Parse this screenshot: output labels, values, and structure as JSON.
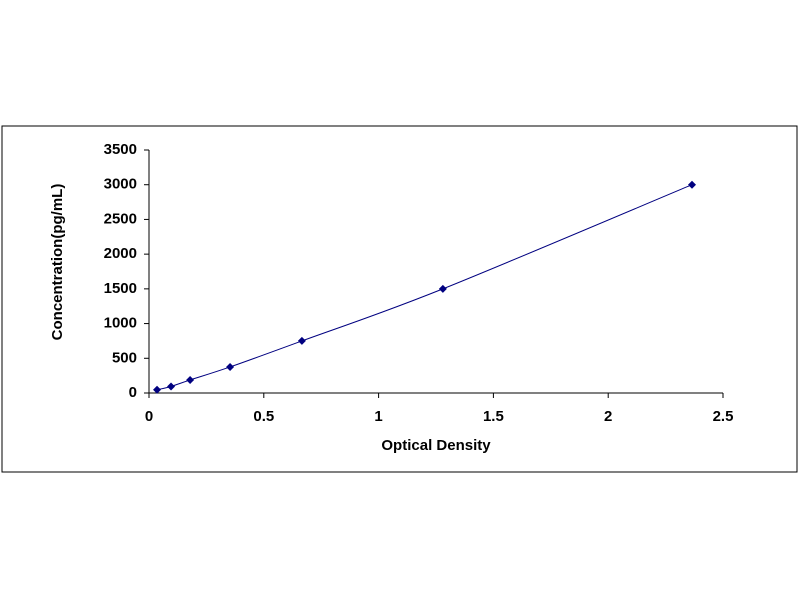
{
  "chart_data": {
    "type": "scatter",
    "x_label": "Optical Density",
    "y_label": "Concentration(pg/mL)",
    "series": [
      {
        "color": "#000080",
        "x": [
          0.035,
          0.096,
          0.179,
          0.353,
          0.666,
          1.28,
          2.365
        ],
        "values": [
          47,
          94,
          188,
          375,
          750,
          1500,
          3000
        ]
      }
    ],
    "xlim": [
      0,
      2.5
    ],
    "xticks": [
      0,
      0.5,
      1,
      1.5,
      2,
      2.5
    ],
    "ylim": [
      0,
      3500
    ],
    "yticks": [
      0,
      500,
      1000,
      1500,
      2000,
      2500,
      3000,
      3500
    ],
    "grid": false,
    "smooth": true
  }
}
